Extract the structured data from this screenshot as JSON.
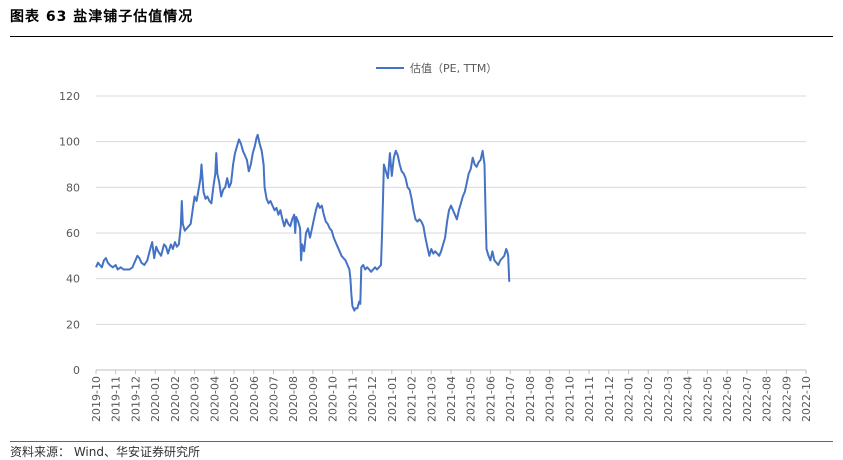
{
  "header": {
    "title": "图表 63  盐津铺子估值情况"
  },
  "footer": {
    "source": "资料来源： Wind、华安证券研究所"
  },
  "chart_data": {
    "type": "line",
    "title": "",
    "xlabel": "",
    "ylabel": "",
    "ylim": [
      0,
      120
    ],
    "yticks": [
      0,
      20,
      40,
      60,
      80,
      100,
      120
    ],
    "grid": true,
    "legend": "top-center",
    "categories": [
      "2019-10",
      "2019-11",
      "2019-12",
      "2020-01",
      "2020-02",
      "2020-03",
      "2020-04",
      "2020-05",
      "2020-06",
      "2020-07",
      "2020-08",
      "2020-09",
      "2020-10",
      "2020-11",
      "2020-12",
      "2021-01",
      "2021-02",
      "2021-03",
      "2021-04",
      "2021-05",
      "2021-06",
      "2021-07",
      "2021-08",
      "2021-09",
      "2021-10",
      "2021-11",
      "2021-12",
      "2022-01",
      "2022-02",
      "2022-03",
      "2022-04",
      "2022-05",
      "2022-06",
      "2022-07",
      "2022-08",
      "2022-09",
      "2022-10"
    ],
    "series": [
      {
        "name": "估值（PE, TTM）",
        "color": "#4472C4",
        "points": [
          [
            0.0,
            45
          ],
          [
            0.1,
            47
          ],
          [
            0.2,
            46
          ],
          [
            0.3,
            45
          ],
          [
            0.4,
            48
          ],
          [
            0.5,
            49
          ],
          [
            0.6,
            47
          ],
          [
            0.7,
            46
          ],
          [
            0.85,
            45
          ],
          [
            1.0,
            46
          ],
          [
            1.1,
            44
          ],
          [
            1.25,
            45
          ],
          [
            1.4,
            44
          ],
          [
            1.55,
            44
          ],
          [
            1.7,
            44
          ],
          [
            1.85,
            45
          ],
          [
            2.0,
            48
          ],
          [
            2.1,
            50
          ],
          [
            2.2,
            49
          ],
          [
            2.3,
            47
          ],
          [
            2.45,
            46
          ],
          [
            2.6,
            48
          ],
          [
            2.75,
            53
          ],
          [
            2.85,
            56
          ],
          [
            2.95,
            49
          ],
          [
            3.05,
            54
          ],
          [
            3.15,
            52
          ],
          [
            3.3,
            50
          ],
          [
            3.45,
            55
          ],
          [
            3.55,
            54
          ],
          [
            3.65,
            51
          ],
          [
            3.8,
            55
          ],
          [
            3.9,
            53
          ],
          [
            4.0,
            56
          ],
          [
            4.1,
            54
          ],
          [
            4.2,
            55
          ],
          [
            4.3,
            63
          ],
          [
            4.35,
            74
          ],
          [
            4.4,
            64
          ],
          [
            4.5,
            61
          ],
          [
            4.6,
            62
          ],
          [
            4.7,
            63
          ],
          [
            4.8,
            64
          ],
          [
            4.9,
            70
          ],
          [
            5.0,
            76
          ],
          [
            5.1,
            74
          ],
          [
            5.2,
            79
          ],
          [
            5.3,
            84
          ],
          [
            5.35,
            90
          ],
          [
            5.45,
            78
          ],
          [
            5.55,
            75
          ],
          [
            5.65,
            76
          ],
          [
            5.75,
            74
          ],
          [
            5.85,
            73
          ],
          [
            5.95,
            80
          ],
          [
            6.05,
            86
          ],
          [
            6.1,
            95
          ],
          [
            6.15,
            86
          ],
          [
            6.25,
            82
          ],
          [
            6.35,
            76
          ],
          [
            6.45,
            79
          ],
          [
            6.55,
            80
          ],
          [
            6.65,
            84
          ],
          [
            6.75,
            80
          ],
          [
            6.85,
            82
          ],
          [
            6.95,
            90
          ],
          [
            7.05,
            95
          ],
          [
            7.15,
            98
          ],
          [
            7.25,
            101
          ],
          [
            7.35,
            99
          ],
          [
            7.45,
            96
          ],
          [
            7.55,
            94
          ],
          [
            7.65,
            92
          ],
          [
            7.75,
            87
          ],
          [
            7.85,
            90
          ],
          [
            7.95,
            95
          ],
          [
            8.05,
            98
          ],
          [
            8.15,
            102
          ],
          [
            8.2,
            103
          ],
          [
            8.3,
            99
          ],
          [
            8.4,
            96
          ],
          [
            8.5,
            90
          ],
          [
            8.55,
            80
          ],
          [
            8.65,
            75
          ],
          [
            8.75,
            73
          ],
          [
            8.85,
            74
          ],
          [
            8.95,
            72
          ],
          [
            9.05,
            70
          ],
          [
            9.15,
            71
          ],
          [
            9.25,
            68
          ],
          [
            9.35,
            70
          ],
          [
            9.45,
            66
          ],
          [
            9.55,
            63
          ],
          [
            9.65,
            66
          ],
          [
            9.75,
            64
          ],
          [
            9.85,
            63
          ],
          [
            9.95,
            66
          ],
          [
            10.05,
            68
          ],
          [
            10.1,
            60
          ],
          [
            10.15,
            67
          ],
          [
            10.25,
            65
          ],
          [
            10.35,
            62
          ],
          [
            10.4,
            48
          ],
          [
            10.45,
            55
          ],
          [
            10.55,
            52
          ],
          [
            10.65,
            60
          ],
          [
            10.75,
            62
          ],
          [
            10.85,
            58
          ],
          [
            10.95,
            62
          ],
          [
            11.05,
            66
          ],
          [
            11.15,
            70
          ],
          [
            11.25,
            73
          ],
          [
            11.35,
            71
          ],
          [
            11.45,
            72
          ],
          [
            11.55,
            68
          ],
          [
            11.65,
            65
          ],
          [
            11.75,
            64
          ],
          [
            11.85,
            62
          ],
          [
            11.95,
            61
          ],
          [
            12.05,
            58
          ],
          [
            12.15,
            56
          ],
          [
            12.25,
            54
          ],
          [
            12.35,
            52
          ],
          [
            12.45,
            50
          ],
          [
            12.55,
            49
          ],
          [
            12.65,
            48
          ],
          [
            12.75,
            46
          ],
          [
            12.85,
            44
          ],
          [
            12.9,
            40
          ],
          [
            12.95,
            33
          ],
          [
            13.0,
            28
          ],
          [
            13.05,
            27
          ],
          [
            13.1,
            26
          ],
          [
            13.15,
            27
          ],
          [
            13.25,
            27
          ],
          [
            13.35,
            30
          ],
          [
            13.4,
            29
          ],
          [
            13.45,
            45
          ],
          [
            13.55,
            46
          ],
          [
            13.65,
            44
          ],
          [
            13.75,
            45
          ],
          [
            13.85,
            44
          ],
          [
            13.95,
            43
          ],
          [
            14.05,
            44
          ],
          [
            14.15,
            45
          ],
          [
            14.25,
            44
          ],
          [
            14.35,
            45
          ],
          [
            14.45,
            46
          ],
          [
            14.5,
            59
          ],
          [
            14.55,
            75
          ],
          [
            14.6,
            90
          ],
          [
            14.7,
            87
          ],
          [
            14.8,
            84
          ],
          [
            14.9,
            95
          ],
          [
            15.0,
            85
          ],
          [
            15.1,
            93
          ],
          [
            15.2,
            96
          ],
          [
            15.3,
            94
          ],
          [
            15.4,
            90
          ],
          [
            15.5,
            87
          ],
          [
            15.6,
            86
          ],
          [
            15.7,
            84
          ],
          [
            15.8,
            80
          ],
          [
            15.9,
            79
          ],
          [
            16.0,
            75
          ],
          [
            16.1,
            70
          ],
          [
            16.2,
            66
          ],
          [
            16.3,
            65
          ],
          [
            16.4,
            66
          ],
          [
            16.5,
            65
          ],
          [
            16.6,
            63
          ],
          [
            16.7,
            58
          ],
          [
            16.8,
            54
          ],
          [
            16.9,
            50
          ],
          [
            17.0,
            53
          ],
          [
            17.1,
            51
          ],
          [
            17.2,
            52
          ],
          [
            17.3,
            51
          ],
          [
            17.4,
            50
          ],
          [
            17.5,
            52
          ],
          [
            17.6,
            55
          ],
          [
            17.7,
            58
          ],
          [
            17.8,
            65
          ],
          [
            17.9,
            70
          ],
          [
            18.0,
            72
          ],
          [
            18.1,
            70
          ],
          [
            18.2,
            68
          ],
          [
            18.3,
            66
          ],
          [
            18.4,
            70
          ],
          [
            18.5,
            73
          ],
          [
            18.6,
            76
          ],
          [
            18.7,
            78
          ],
          [
            18.8,
            82
          ],
          [
            18.9,
            86
          ],
          [
            19.0,
            88
          ],
          [
            19.1,
            93
          ],
          [
            19.2,
            90
          ],
          [
            19.3,
            89
          ],
          [
            19.4,
            91
          ],
          [
            19.5,
            92
          ],
          [
            19.6,
            96
          ],
          [
            19.7,
            90
          ],
          [
            19.75,
            70
          ],
          [
            19.8,
            53
          ],
          [
            19.9,
            50
          ],
          [
            20.0,
            48
          ],
          [
            20.1,
            52
          ],
          [
            20.2,
            48
          ],
          [
            20.3,
            47
          ],
          [
            20.4,
            46
          ],
          [
            20.5,
            48
          ],
          [
            20.6,
            49
          ],
          [
            20.7,
            50
          ],
          [
            20.8,
            53
          ],
          [
            20.85,
            52
          ],
          [
            20.9,
            50
          ],
          [
            20.95,
            39
          ],
          [
            21.0,
            39
          ]
        ]
      }
    ]
  }
}
